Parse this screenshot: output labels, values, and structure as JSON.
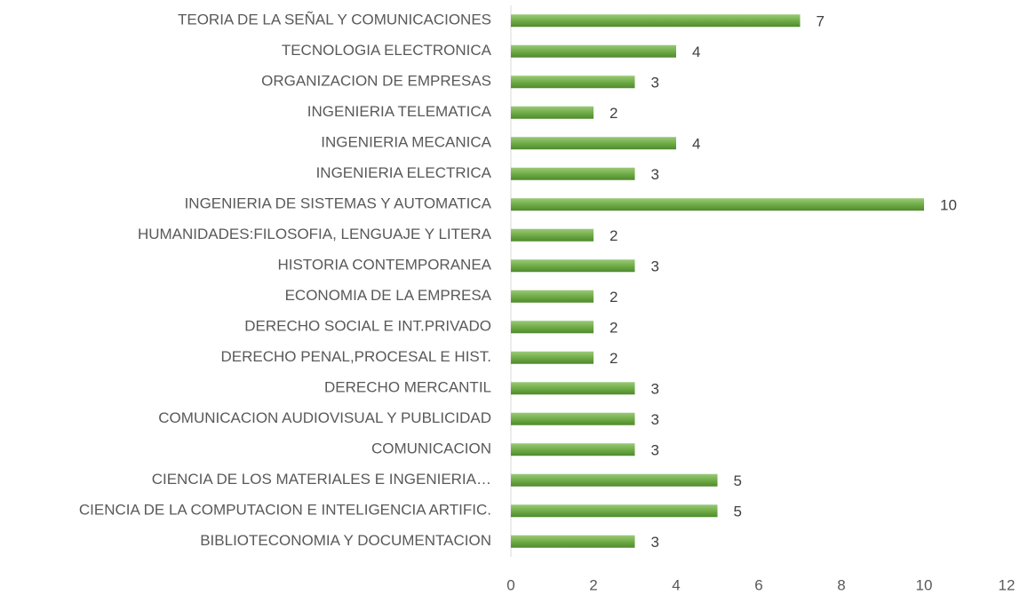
{
  "chart_data": {
    "type": "bar",
    "orientation": "horizontal",
    "categories": [
      "TEORIA DE LA SEÑAL Y COMUNICACIONES",
      "TECNOLOGIA ELECTRONICA",
      "ORGANIZACION DE EMPRESAS",
      "INGENIERIA TELEMATICA",
      "INGENIERIA MECANICA",
      "INGENIERIA ELECTRICA",
      "INGENIERIA DE SISTEMAS Y AUTOMATICA",
      "HUMANIDADES:FILOSOFIA, LENGUAJE Y LITERA",
      "HISTORIA CONTEMPORANEA",
      "ECONOMIA DE LA EMPRESA",
      "DERECHO SOCIAL E INT.PRIVADO",
      "DERECHO PENAL,PROCESAL E HIST.",
      "DERECHO MERCANTIL",
      "COMUNICACION AUDIOVISUAL Y PUBLICIDAD",
      "COMUNICACION",
      "CIENCIA DE LOS MATERIALES E INGENIERIA…",
      "CIENCIA DE LA COMPUTACION E INTELIGENCIA ARTIFIC.",
      "BIBLIOTECONOMIA Y DOCUMENTACION"
    ],
    "values": [
      7,
      4,
      3,
      2,
      4,
      3,
      10,
      2,
      3,
      2,
      2,
      2,
      3,
      3,
      3,
      5,
      5,
      3
    ],
    "color": "#70ad47",
    "xlim": [
      0,
      12
    ],
    "xticks": [
      0,
      2,
      4,
      6,
      8,
      10,
      12
    ],
    "grid": false
  }
}
